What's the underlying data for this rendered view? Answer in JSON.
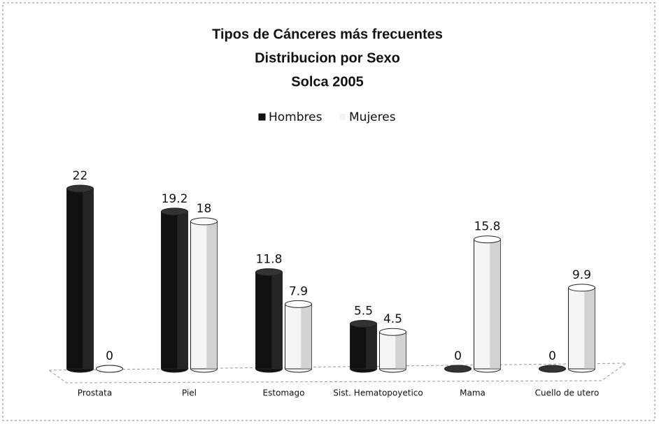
{
  "chart_data": {
    "type": "bar",
    "title": [
      "Tipos de Cánceres más frecuentes",
      "Distribucion por Sexo",
      "Solca 2005"
    ],
    "categories": [
      "Prostata",
      "Piel",
      "Estomago",
      "Sist. Hematopoyetico",
      "Mama",
      "Cuello de utero"
    ],
    "series": [
      {
        "name": "Hombres",
        "color": "#111111",
        "values": [
          22,
          19.2,
          11.8,
          5.5,
          0,
          0
        ]
      },
      {
        "name": "Mujeres",
        "color": "#f4f4f4",
        "values": [
          0,
          18,
          7.9,
          4.5,
          15.8,
          9.9
        ]
      }
    ],
    "legend": "top"
  }
}
